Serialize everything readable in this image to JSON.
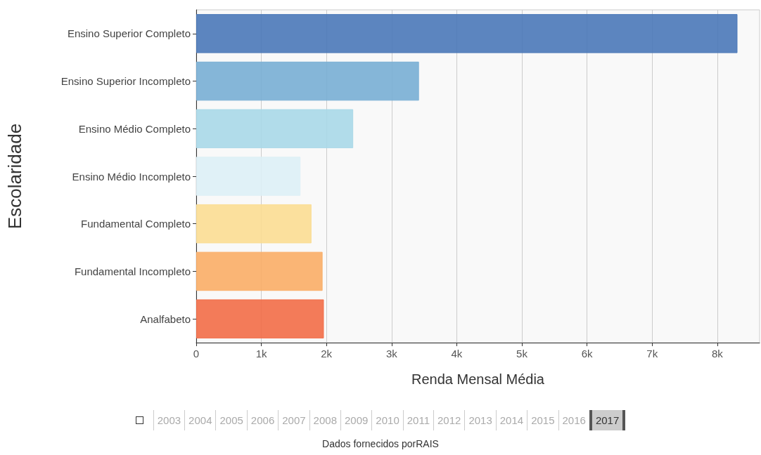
{
  "chart_data": {
    "type": "bar",
    "orientation": "horizontal",
    "xlabel": "Renda Mensal Média",
    "ylabel": "Escolaridade",
    "categories": [
      "Ensino Superior Completo",
      "Ensino Superior Incompleto",
      "Ensino Médio Completo",
      "Ensino Médio Incompleto",
      "Fundamental Completo",
      "Fundamental Incompleto",
      "Analfabeto"
    ],
    "values": [
      8310,
      3420,
      2410,
      1600,
      1770,
      1940,
      1960
    ],
    "colors": [
      "#4a78b8",
      "#78aed4",
      "#a9d8e8",
      "#ddf0f6",
      "#fbdd92",
      "#f9ad66",
      "#f26d47"
    ],
    "xlim": [
      0,
      8650
    ],
    "xticks": [
      0,
      {
        "value": 1000,
        "label": "1k"
      },
      {
        "value": 2000,
        "label": "2k"
      },
      {
        "value": 3000,
        "label": "3k"
      },
      {
        "value": 4000,
        "label": "4k"
      },
      {
        "value": 5000,
        "label": "5k"
      },
      {
        "value": 6000,
        "label": "6k"
      },
      {
        "value": 7000,
        "label": "7k"
      },
      {
        "value": 8000,
        "label": "8k"
      }
    ],
    "grid": "x",
    "annotations": [
      "2003",
      "2004",
      "2005",
      "2006",
      "2007",
      "2008",
      "2009",
      "2010",
      "2011",
      "2012",
      "2013",
      "2014",
      "2015",
      "2016",
      "2017",
      "Dados fornecidos porRAIS"
    ]
  }
}
